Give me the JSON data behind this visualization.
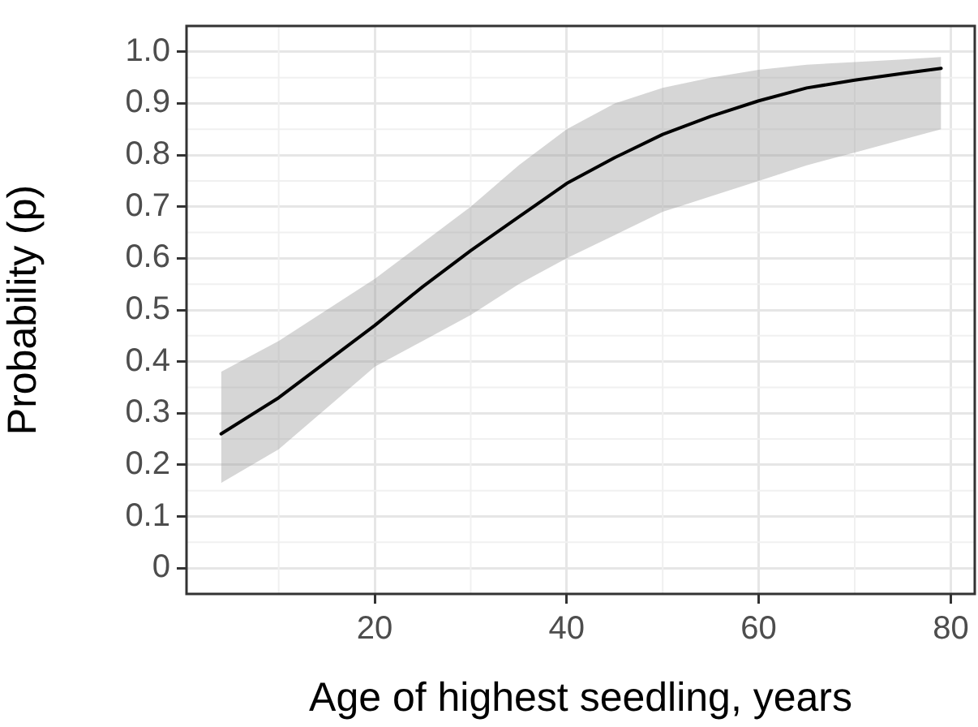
{
  "chart_data": {
    "type": "line",
    "xlabel": "Age of highest seedling, years",
    "ylabel": "Probability (p)",
    "x": [
      4,
      10,
      15,
      20,
      25,
      30,
      35,
      40,
      45,
      50,
      55,
      60,
      65,
      70,
      75,
      79
    ],
    "series": [
      {
        "color": "#000000",
        "values": [
          0.26,
          0.33,
          0.4,
          0.47,
          0.545,
          0.615,
          0.68,
          0.745,
          0.795,
          0.84,
          0.875,
          0.905,
          0.93,
          0.945,
          0.958,
          0.968
        ],
        "lower": [
          0.165,
          0.23,
          0.31,
          0.39,
          0.44,
          0.49,
          0.55,
          0.6,
          0.645,
          0.69,
          0.72,
          0.75,
          0.78,
          0.805,
          0.83,
          0.85
        ],
        "upper": [
          0.38,
          0.44,
          0.5,
          0.56,
          0.63,
          0.7,
          0.78,
          0.85,
          0.9,
          0.93,
          0.95,
          0.965,
          0.975,
          0.98,
          0.985,
          0.99
        ]
      }
    ],
    "xlim": [
      0.4,
      82.5
    ],
    "xticks": [
      20,
      40,
      60,
      80
    ],
    "ylim": [
      -0.05,
      1.05
    ],
    "yticks": [
      0,
      0.1,
      0.2,
      0.3,
      0.4,
      0.5,
      0.6,
      0.7,
      0.8,
      0.9,
      {
        "value": 1,
        "label": "1.0"
      }
    ],
    "grid": true,
    "legend": false,
    "line_style": "solid",
    "marker": "none"
  }
}
